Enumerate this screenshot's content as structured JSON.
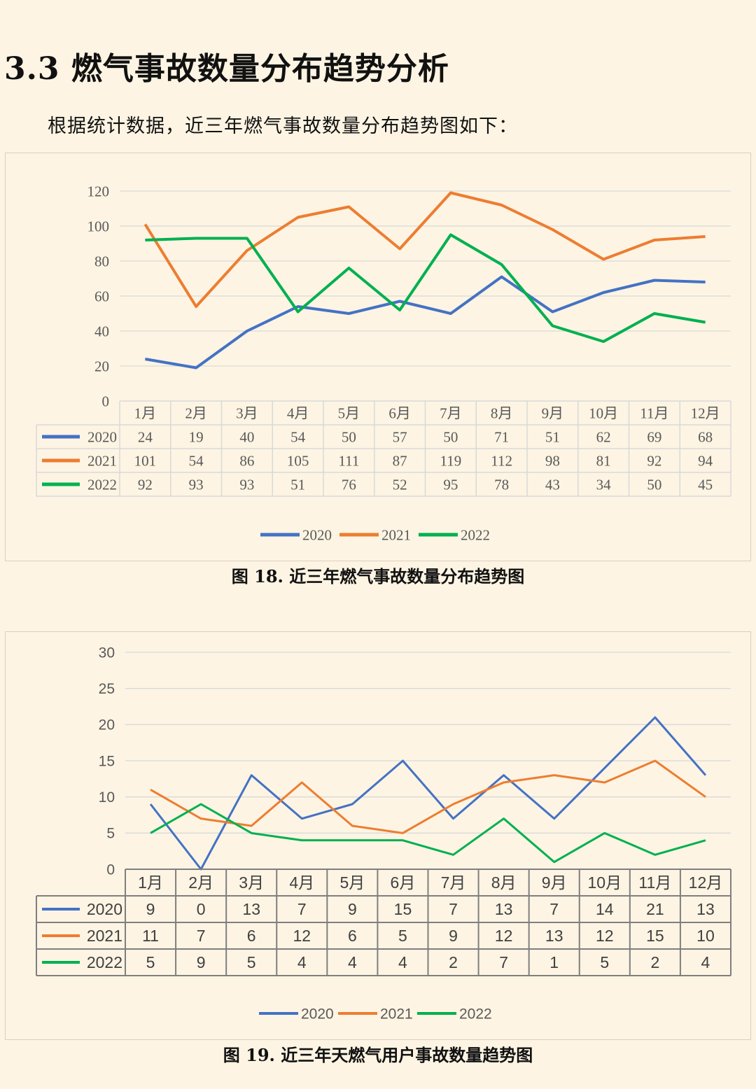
{
  "section_heading": "3.3 燃气事故数量分布趋势分析",
  "intro_text": "根据统计数据，近三年燃气事故数量分布趋势图如下：",
  "colors": {
    "2020": "#4472c4",
    "2021": "#ed7d31",
    "2022": "#00b050"
  },
  "chart_data": [
    {
      "type": "line",
      "caption": "图 18.  近三年燃气事故数量分布趋势图",
      "categories": [
        "1月",
        "2月",
        "3月",
        "4月",
        "5月",
        "6月",
        "7月",
        "8月",
        "9月",
        "10月",
        "11月",
        "12月"
      ],
      "ylim": [
        0,
        120
      ],
      "yticks": [
        0,
        20,
        40,
        60,
        80,
        100,
        120
      ],
      "grid": true,
      "legend": "bottom",
      "data_table": true,
      "series": [
        {
          "name": "2020",
          "values": [
            24,
            19,
            40,
            54,
            50,
            57,
            50,
            71,
            51,
            62,
            69,
            68
          ]
        },
        {
          "name": "2021",
          "values": [
            101,
            54,
            86,
            105,
            111,
            87,
            119,
            112,
            98,
            81,
            92,
            94
          ]
        },
        {
          "name": "2022",
          "values": [
            92,
            93,
            93,
            51,
            76,
            52,
            95,
            78,
            43,
            34,
            50,
            45
          ]
        }
      ]
    },
    {
      "type": "line",
      "caption": "图 19.  近三年天燃气用户事故数量趋势图",
      "categories": [
        "1月",
        "2月",
        "3月",
        "4月",
        "5月",
        "6月",
        "7月",
        "8月",
        "9月",
        "10月",
        "11月",
        "12月"
      ],
      "ylim": [
        0,
        30
      ],
      "yticks": [
        0,
        5,
        10,
        15,
        20,
        25,
        30
      ],
      "grid": true,
      "legend": "bottom",
      "data_table": true,
      "series": [
        {
          "name": "2020",
          "values": [
            9,
            0,
            13,
            7,
            9,
            15,
            7,
            13,
            7,
            14,
            21,
            13
          ]
        },
        {
          "name": "2021",
          "values": [
            11,
            7,
            6,
            12,
            6,
            5,
            9,
            12,
            13,
            12,
            15,
            10
          ]
        },
        {
          "name": "2022",
          "values": [
            5,
            9,
            5,
            4,
            4,
            4,
            2,
            7,
            1,
            5,
            2,
            4
          ]
        }
      ]
    }
  ]
}
